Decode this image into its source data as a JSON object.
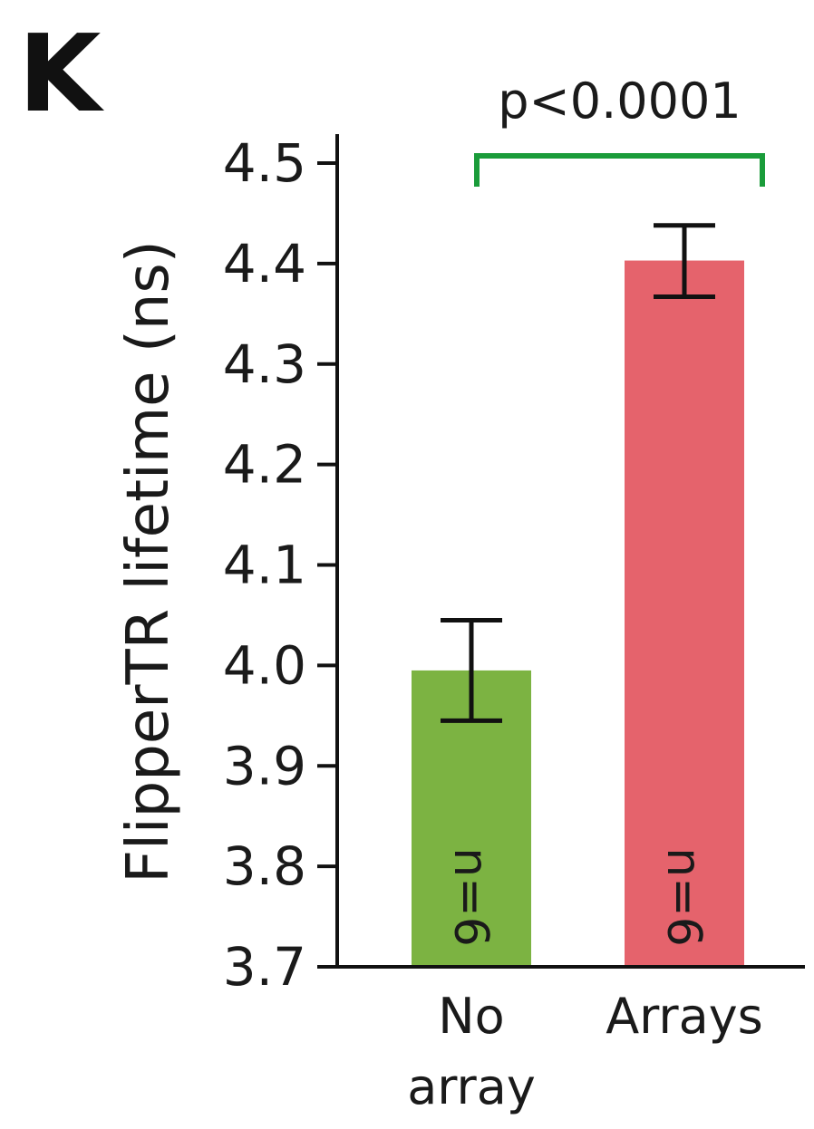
{
  "panel_label": "K",
  "chart_data": {
    "type": "bar",
    "categories": [
      [
        "No",
        "array"
      ],
      [
        "Arrays"
      ]
    ],
    "values": [
      3.995,
      4.403
    ],
    "error_low": [
      3.945,
      4.367
    ],
    "error_high": [
      4.045,
      4.438
    ],
    "colors": [
      "#7cb342",
      "#e5636c"
    ],
    "sample_labels": [
      "n=6",
      "n=6"
    ],
    "ylabel": "FlipperTR lifetime (ns)",
    "xlabel": "",
    "ylim": [
      3.7,
      4.5
    ],
    "yticks": [
      "3.7",
      "3.8",
      "3.9",
      "4.0",
      "4.1",
      "4.2",
      "4.3",
      "4.4",
      "4.5"
    ],
    "grid": false,
    "significance": {
      "label": "p<0.0001",
      "color": "#1a9c3a",
      "between": [
        0,
        1
      ]
    }
  }
}
